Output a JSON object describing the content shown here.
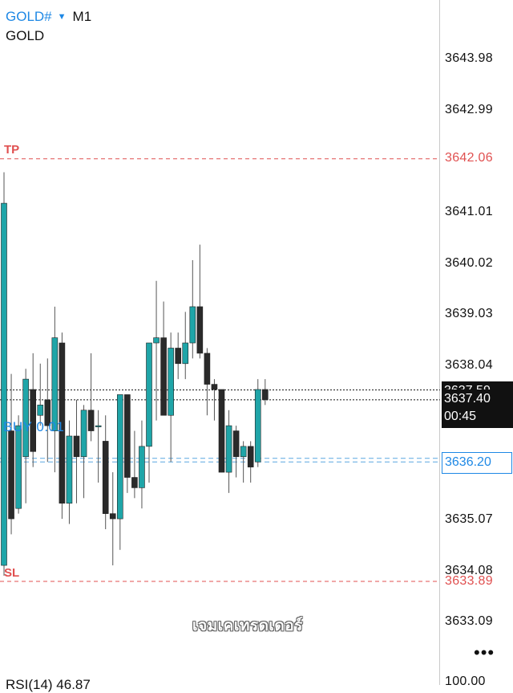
{
  "header": {
    "symbol": "GOLD#",
    "timeframe": "M1",
    "description": "GOLD"
  },
  "price_axis": {
    "labels": [
      "3643.98",
      "3642.99",
      "3641.01",
      "3640.02",
      "3639.03",
      "3638.04",
      "3635.07",
      "3634.08",
      "3633.09"
    ],
    "bottom_label": "100.00"
  },
  "lines": {
    "tp_tag": "TP",
    "tp_price": "3642.06",
    "sl_tag": "SL",
    "sl_price": "3633.89",
    "buy_tag": "BUY 0.01",
    "entry_price": "3636.20",
    "ask_price": "3637.59",
    "bid_price": "3637.40",
    "countdown": "00:45"
  },
  "watermark": "เจมเคเทรดเดอร์",
  "indicator": {
    "label": "RSI(14) 46.87"
  },
  "colors": {
    "bull": "#1fa5a8",
    "bear": "#2a2a2a",
    "tp_sl": "#e05050",
    "entry": "#1e88e5"
  },
  "chart_data": {
    "type": "candlestick",
    "price_range": [
      3632.6,
      3644.5
    ],
    "candles": [
      {
        "o": 3634.2,
        "h": 3641.8,
        "l": 3634.0,
        "c": 3641.2
      },
      {
        "o": 3636.8,
        "h": 3637.9,
        "l": 3634.8,
        "c": 3635.1
      },
      {
        "o": 3635.3,
        "h": 3637.1,
        "l": 3635.2,
        "c": 3636.9
      },
      {
        "o": 3636.3,
        "h": 3638.0,
        "l": 3635.4,
        "c": 3637.8
      },
      {
        "o": 3637.6,
        "h": 3638.3,
        "l": 3636.1,
        "c": 3636.4
      },
      {
        "o": 3637.1,
        "h": 3638.1,
        "l": 3636.9,
        "c": 3637.3
      },
      {
        "o": 3637.4,
        "h": 3638.2,
        "l": 3636.2,
        "c": 3636.9
      },
      {
        "o": 3636.8,
        "h": 3639.2,
        "l": 3636.0,
        "c": 3638.6
      },
      {
        "o": 3638.5,
        "h": 3638.7,
        "l": 3635.1,
        "c": 3635.4
      },
      {
        "o": 3635.4,
        "h": 3637.0,
        "l": 3635.0,
        "c": 3636.7
      },
      {
        "o": 3636.7,
        "h": 3637.4,
        "l": 3635.4,
        "c": 3636.3
      },
      {
        "o": 3636.3,
        "h": 3637.3,
        "l": 3635.5,
        "c": 3637.2
      },
      {
        "o": 3637.2,
        "h": 3638.3,
        "l": 3636.6,
        "c": 3636.8
      },
      {
        "o": 3636.9,
        "h": 3637.2,
        "l": 3635.8,
        "c": 3636.9
      },
      {
        "o": 3636.6,
        "h": 3637.1,
        "l": 3634.9,
        "c": 3635.2
      },
      {
        "o": 3635.2,
        "h": 3636.0,
        "l": 3634.2,
        "c": 3635.1
      },
      {
        "o": 3635.1,
        "h": 3637.5,
        "l": 3634.5,
        "c": 3637.5
      },
      {
        "o": 3637.5,
        "h": 3637.5,
        "l": 3635.6,
        "c": 3635.9
      },
      {
        "o": 3635.9,
        "h": 3636.8,
        "l": 3635.5,
        "c": 3635.7
      },
      {
        "o": 3635.7,
        "h": 3637.0,
        "l": 3635.3,
        "c": 3636.5
      },
      {
        "o": 3636.5,
        "h": 3638.5,
        "l": 3635.8,
        "c": 3638.5
      },
      {
        "o": 3638.5,
        "h": 3639.7,
        "l": 3637.0,
        "c": 3638.6
      },
      {
        "o": 3638.6,
        "h": 3639.3,
        "l": 3637.1,
        "c": 3637.1
      },
      {
        "o": 3637.1,
        "h": 3638.7,
        "l": 3636.2,
        "c": 3638.4
      },
      {
        "o": 3638.4,
        "h": 3638.7,
        "l": 3637.8,
        "c": 3638.1
      },
      {
        "o": 3638.1,
        "h": 3639.1,
        "l": 3637.8,
        "c": 3638.5
      },
      {
        "o": 3638.5,
        "h": 3640.1,
        "l": 3638.2,
        "c": 3639.2
      },
      {
        "o": 3639.2,
        "h": 3640.4,
        "l": 3638.2,
        "c": 3638.3
      },
      {
        "o": 3638.3,
        "h": 3638.4,
        "l": 3637.1,
        "c": 3637.7
      },
      {
        "o": 3637.7,
        "h": 3637.8,
        "l": 3637.0,
        "c": 3637.6
      },
      {
        "o": 3637.6,
        "h": 3637.6,
        "l": 3636.0,
        "c": 3636.0
      },
      {
        "o": 3636.0,
        "h": 3637.2,
        "l": 3635.6,
        "c": 3636.9
      },
      {
        "o": 3636.8,
        "h": 3636.9,
        "l": 3635.9,
        "c": 3636.3
      },
      {
        "o": 3636.3,
        "h": 3636.6,
        "l": 3635.8,
        "c": 3636.5
      },
      {
        "o": 3636.5,
        "h": 3636.6,
        "l": 3635.8,
        "c": 3636.1
      },
      {
        "o": 3636.2,
        "h": 3637.8,
        "l": 3636.1,
        "c": 3637.6
      },
      {
        "o": 3637.6,
        "h": 3637.8,
        "l": 3637.3,
        "c": 3637.4
      }
    ]
  }
}
